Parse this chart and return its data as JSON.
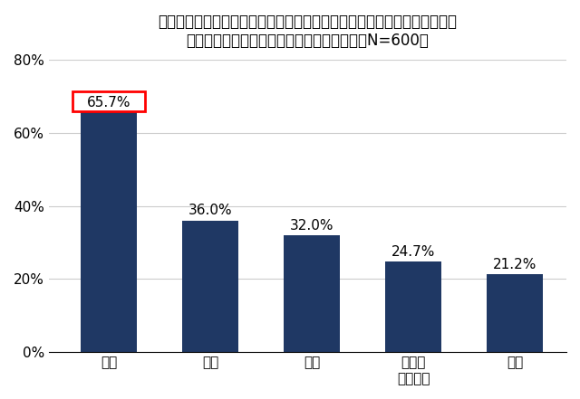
{
  "categories": [
    "警察",
    "母親",
    "友人",
    "公的な\n相談窓口",
    "父親"
  ],
  "values": [
    65.7,
    36.0,
    32.0,
    24.7,
    21.2
  ],
  "bar_color": "#1F3864",
  "title_line1": "今後、もしあなたがストーカー行為の被害に遭った（遭いそうになった）",
  "title_line2": "としたら、誰に相談しますか　（複数回答、N=600）",
  "ylabel": "",
  "ylim": [
    0,
    80
  ],
  "yticks": [
    0,
    20,
    40,
    60,
    80
  ],
  "ytick_labels": [
    "0%",
    "20%",
    "40%",
    "60%",
    "80%"
  ],
  "value_labels": [
    "65.7%",
    "36.0%",
    "32.0%",
    "24.7%",
    "21.2%"
  ],
  "highlight_bar_index": 0,
  "highlight_box_color": "#FF0000",
  "background_color": "#FFFFFF",
  "grid_color": "#CCCCCC",
  "label_fontsize": 11,
  "title_fontsize": 12,
  "tick_fontsize": 11,
  "value_fontsize": 11
}
